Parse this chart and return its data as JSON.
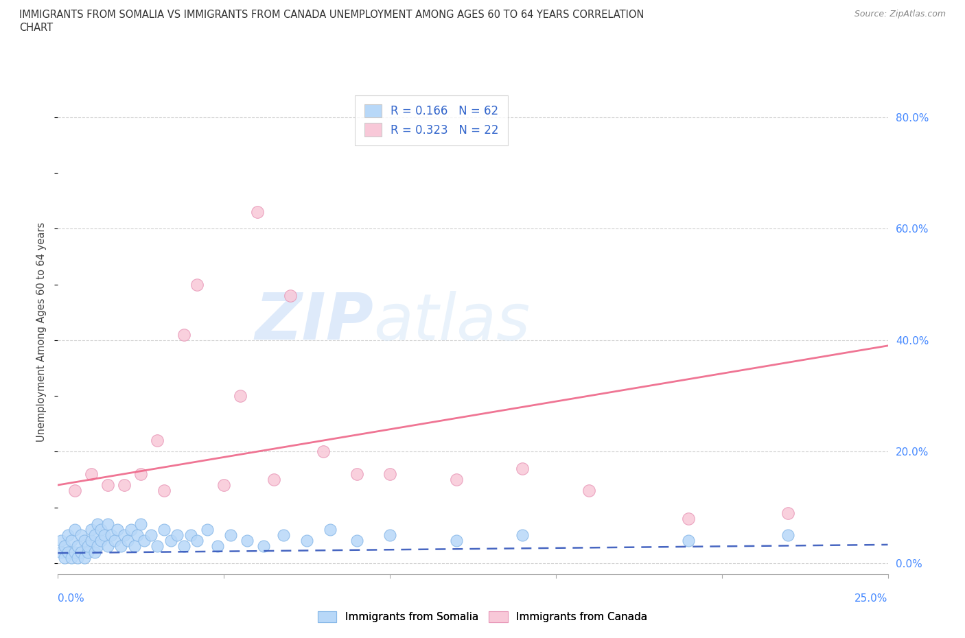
{
  "title_line1": "IMMIGRANTS FROM SOMALIA VS IMMIGRANTS FROM CANADA UNEMPLOYMENT AMONG AGES 60 TO 64 YEARS CORRELATION",
  "title_line2": "CHART",
  "source": "Source: ZipAtlas.com",
  "ylabel": "Unemployment Among Ages 60 to 64 years",
  "xlim": [
    0.0,
    0.25
  ],
  "ylim": [
    -0.02,
    0.85
  ],
  "yticks_right": [
    0.0,
    0.2,
    0.4,
    0.6,
    0.8
  ],
  "ytick_labels_right": [
    "0.0%",
    "20.0%",
    "40.0%",
    "60.0%",
    "80.0%"
  ],
  "grid_color": "#cccccc",
  "background_color": "#ffffff",
  "somalia_color": "#b8d8f8",
  "somalia_edge": "#88b8e8",
  "canada_color": "#f8c8d8",
  "canada_edge": "#e898b8",
  "somalia_line_color": "#3355bb",
  "somalia_line_style": "--",
  "canada_line_color": "#ee6688",
  "canada_line_style": "-",
  "somalia_intercept": 0.018,
  "somalia_slope": 0.06,
  "canada_intercept": 0.14,
  "canada_slope": 1.0,
  "legend_somalia_label": "R = 0.166   N = 62",
  "legend_canada_label": "R = 0.323   N = 22",
  "bottom_legend_somalia": "Immigrants from Somalia",
  "bottom_legend_canada": "Immigrants from Canada",
  "watermark_zip": "ZIP",
  "watermark_atlas": "atlas",
  "somalia_x": [
    0.001,
    0.001,
    0.002,
    0.002,
    0.003,
    0.003,
    0.004,
    0.004,
    0.005,
    0.005,
    0.006,
    0.006,
    0.007,
    0.007,
    0.008,
    0.008,
    0.009,
    0.009,
    0.01,
    0.01,
    0.011,
    0.011,
    0.012,
    0.012,
    0.013,
    0.013,
    0.014,
    0.015,
    0.015,
    0.016,
    0.017,
    0.018,
    0.019,
    0.02,
    0.021,
    0.022,
    0.023,
    0.024,
    0.025,
    0.026,
    0.028,
    0.03,
    0.032,
    0.034,
    0.036,
    0.038,
    0.04,
    0.042,
    0.045,
    0.048,
    0.052,
    0.057,
    0.062,
    0.068,
    0.075,
    0.082,
    0.09,
    0.1,
    0.12,
    0.14,
    0.19,
    0.22
  ],
  "somalia_y": [
    0.02,
    0.04,
    0.01,
    0.03,
    0.02,
    0.05,
    0.01,
    0.04,
    0.02,
    0.06,
    0.01,
    0.03,
    0.02,
    0.05,
    0.01,
    0.04,
    0.02,
    0.03,
    0.04,
    0.06,
    0.02,
    0.05,
    0.03,
    0.07,
    0.04,
    0.06,
    0.05,
    0.03,
    0.07,
    0.05,
    0.04,
    0.06,
    0.03,
    0.05,
    0.04,
    0.06,
    0.03,
    0.05,
    0.07,
    0.04,
    0.05,
    0.03,
    0.06,
    0.04,
    0.05,
    0.03,
    0.05,
    0.04,
    0.06,
    0.03,
    0.05,
    0.04,
    0.03,
    0.05,
    0.04,
    0.06,
    0.04,
    0.05,
    0.04,
    0.05,
    0.04,
    0.05
  ],
  "canada_x": [
    0.005,
    0.01,
    0.015,
    0.02,
    0.025,
    0.03,
    0.032,
    0.038,
    0.042,
    0.05,
    0.055,
    0.06,
    0.065,
    0.07,
    0.08,
    0.09,
    0.1,
    0.12,
    0.14,
    0.16,
    0.19,
    0.22
  ],
  "canada_y": [
    0.13,
    0.16,
    0.14,
    0.14,
    0.16,
    0.22,
    0.13,
    0.41,
    0.5,
    0.14,
    0.3,
    0.63,
    0.15,
    0.48,
    0.2,
    0.16,
    0.16,
    0.15,
    0.17,
    0.13,
    0.08,
    0.09
  ]
}
